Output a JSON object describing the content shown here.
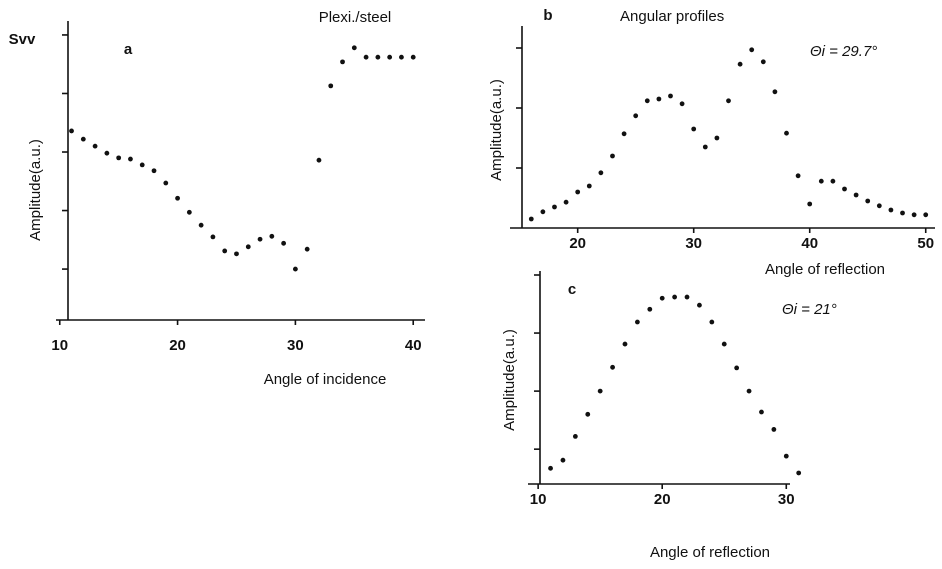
{
  "chart_data": [
    {
      "type": "scatter",
      "panel": "a",
      "title": "Plexi./steel",
      "y_axis_symbol": "Svv",
      "x_label": "Angle of incidence",
      "y_label": "Amplitude(a.u.)",
      "color": "#111111",
      "x": [
        11,
        12,
        13,
        14,
        15,
        16,
        17,
        18,
        19,
        20,
        21,
        22,
        23,
        24,
        25,
        26,
        27,
        28,
        29,
        30,
        31,
        32,
        33,
        34,
        35,
        36,
        37,
        38,
        39,
        40
      ],
      "values": [
        3.36,
        3.22,
        3.1,
        2.98,
        2.9,
        2.88,
        2.78,
        2.68,
        2.47,
        2.21,
        1.97,
        1.75,
        1.55,
        1.31,
        1.26,
        1.38,
        1.51,
        1.56,
        1.44,
        1.0,
        1.34,
        2.86,
        4.13,
        4.54,
        4.78,
        4.62,
        4.62,
        4.62,
        4.62,
        4.62
      ],
      "xlim": [
        10.7,
        41
      ],
      "xticks": [
        10,
        20,
        30,
        40
      ],
      "ylim": [
        0.13,
        5.17
      ],
      "yticks": [
        1,
        2,
        3,
        4,
        5
      ]
    },
    {
      "type": "scatter",
      "panel": "b",
      "title": "Angular profiles",
      "annotation": "Θi = 29.7°",
      "x_label": "Angle of reflection",
      "y_label": "Amplitude(a.u.)",
      "color": "#111111",
      "x": [
        16,
        17,
        18,
        19,
        20,
        21,
        22,
        23,
        24,
        25,
        26,
        27,
        28,
        29,
        30,
        31,
        32,
        33,
        34,
        35,
        36,
        37,
        38,
        39,
        40,
        41,
        42,
        43,
        44,
        45,
        46,
        47,
        48,
        49,
        50
      ],
      "values": [
        0.15,
        0.27,
        0.35,
        0.43,
        0.6,
        0.7,
        0.92,
        1.2,
        1.57,
        1.87,
        2.12,
        2.15,
        2.2,
        2.07,
        1.65,
        1.35,
        1.5,
        2.12,
        2.73,
        2.97,
        2.77,
        2.27,
        1.58,
        0.87,
        0.4,
        0.78,
        0.78,
        0.65,
        0.55,
        0.45,
        0.37,
        0.3,
        0.25,
        0.22,
        0.22
      ],
      "xlim": [
        15.2,
        50.8
      ],
      "xticks": [
        20,
        30,
        40,
        50
      ],
      "ylim": [
        0,
        3.3
      ],
      "yticks": [
        1,
        2,
        3
      ]
    },
    {
      "type": "scatter",
      "panel": "c",
      "annotation": "Θi = 21°",
      "x_label": "Angle of reflection",
      "y_label": "Amplitude(a.u.)",
      "color": "#111111",
      "x": [
        11,
        12,
        13,
        14,
        15,
        16,
        17,
        18,
        19,
        20,
        21,
        22,
        23,
        24,
        25,
        26,
        27,
        28,
        29,
        30,
        31
      ],
      "values": [
        0.67,
        0.81,
        1.22,
        1.6,
        2.0,
        2.41,
        2.81,
        3.19,
        3.41,
        3.6,
        3.62,
        3.62,
        3.48,
        3.19,
        2.81,
        2.4,
        2.0,
        1.64,
        1.34,
        0.88,
        0.59
      ],
      "xlim": [
        10.15,
        30.3
      ],
      "xticks": [
        10,
        20,
        30
      ],
      "ylim": [
        0.4,
        4
      ],
      "yticks": [
        1,
        2,
        3,
        4
      ]
    }
  ]
}
